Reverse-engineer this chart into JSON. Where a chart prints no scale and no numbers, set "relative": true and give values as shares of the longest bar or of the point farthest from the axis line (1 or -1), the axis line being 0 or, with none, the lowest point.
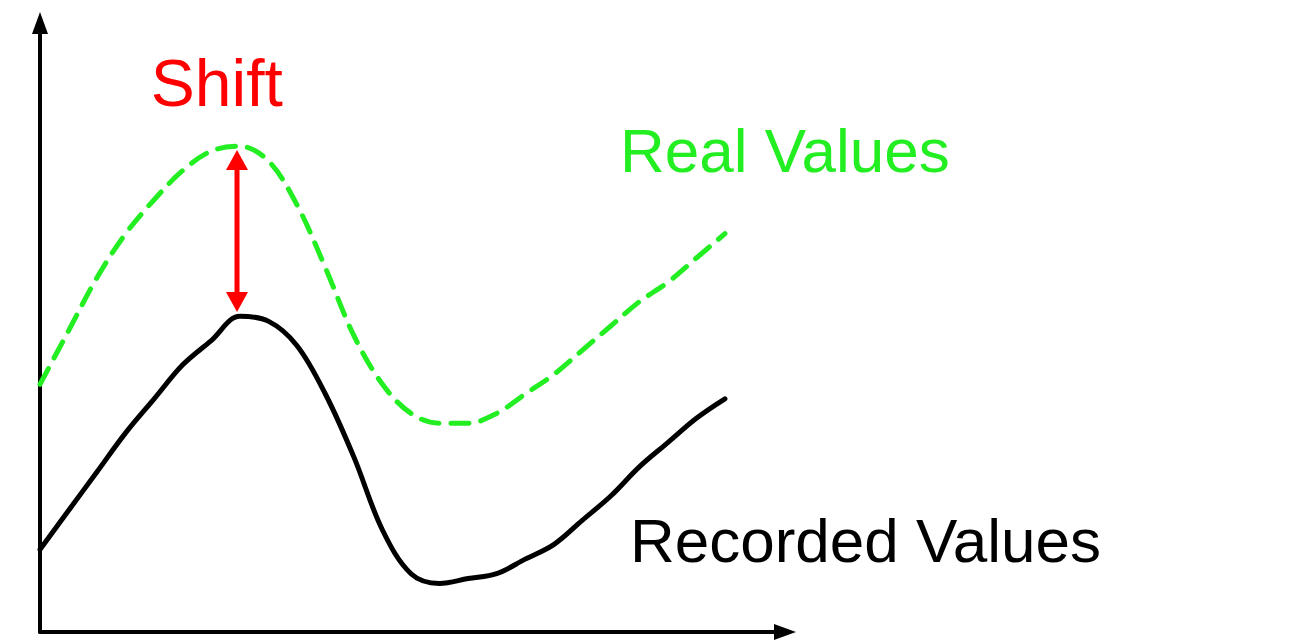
{
  "chart_data": {
    "type": "line",
    "relative": true,
    "marker": "none",
    "annotations": [
      "Shift"
    ],
    "categories": [
      null,
      null,
      null,
      null,
      null,
      null,
      null,
      null,
      null,
      null,
      null,
      null,
      null,
      null,
      null,
      null,
      null,
      null,
      null,
      null,
      null,
      null,
      null,
      null,
      null,
      null,
      null
    ],
    "series": [
      {
        "name": "Real Values",
        "color": "#22ee22",
        "line_style": "dashed",
        "values": [
          0.51,
          0.62,
          0.73,
          0.82,
          0.89,
          0.95,
          0.99,
          1,
          0.97,
          0.88,
          0.75,
          0.61,
          0.51,
          0.45,
          0.43,
          0.43,
          0.45,
          0.49,
          0.53,
          0.58,
          0.63,
          0.68,
          0.72,
          0.77,
          0.82,
          null,
          null
        ]
      },
      {
        "name": "Recorded Values",
        "color": "#000000",
        "line_style": "solid",
        "values": [
          0.17,
          0.25,
          0.33,
          0.41,
          0.48,
          0.55,
          0.6,
          0.65,
          0.64,
          0.59,
          0.49,
          0.36,
          0.21,
          0.12,
          0.1,
          0.11,
          0.12,
          0.15,
          0.18,
          0.23,
          0.28,
          0.34,
          0.39,
          0.44,
          0.48,
          null,
          null
        ]
      }
    ]
  }
}
